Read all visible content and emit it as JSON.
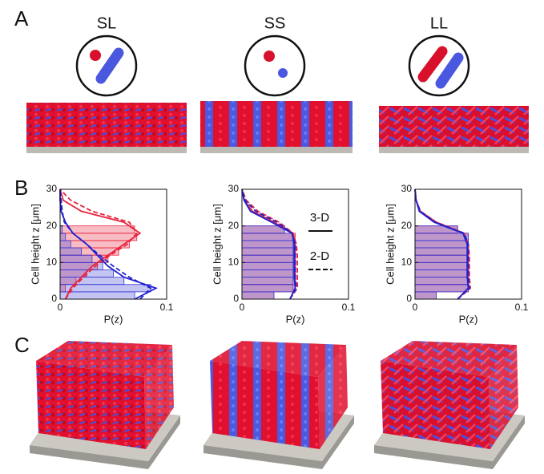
{
  "panel_labels": [
    "A",
    "B",
    "C"
  ],
  "strains": [
    "SL",
    "SS",
    "LL"
  ],
  "chart_data": [
    {
      "type": "histogram",
      "orientation": "horizontal",
      "xlabel": "P(z)",
      "ylabel": "Cell height z [μm]",
      "xlim": [
        0,
        0.1
      ],
      "xticks": [
        0,
        0.1
      ],
      "ylim": [
        0,
        30
      ],
      "yticks": [
        0,
        10,
        20,
        30
      ],
      "bins": [
        0,
        2,
        4,
        6,
        8,
        10,
        12,
        14,
        16,
        18,
        20,
        22
      ],
      "series": [
        {
          "color": "#e8233c",
          "values": [
            0,
            0.005,
            0.015,
            0.025,
            0.035,
            0.045,
            0.055,
            0.065,
            0.072,
            0.07,
            0
          ]
        },
        {
          "color": "#3a3ad8",
          "values": [
            0.07,
            0.085,
            0.06,
            0.05,
            0.04,
            0.03,
            0.02,
            0.01,
            0.005,
            0.002,
            0
          ]
        }
      ],
      "z": [
        0,
        3,
        6,
        9,
        12,
        15,
        18,
        21,
        24,
        27,
        30
      ],
      "lines": [
        {
          "color": "#e8233c",
          "style": "solid",
          "values": [
            0.005,
            0.01,
            0.02,
            0.03,
            0.045,
            0.06,
            0.075,
            0.06,
            0.02,
            0.003,
            0
          ]
        },
        {
          "color": "#e8233c",
          "style": "dashed",
          "values": [
            0.005,
            0.012,
            0.022,
            0.033,
            0.047,
            0.063,
            0.072,
            0.065,
            0.03,
            0.01,
            0
          ]
        },
        {
          "color": "#2020d0",
          "style": "solid",
          "values": [
            0.07,
            0.09,
            0.06,
            0.045,
            0.035,
            0.025,
            0.012,
            0.005,
            0.001,
            0,
            0
          ]
        },
        {
          "color": "#2020d0",
          "style": "dashed",
          "values": [
            0.075,
            0.085,
            0.065,
            0.05,
            0.037,
            0.025,
            0.012,
            0.004,
            0.002,
            0.001,
            0
          ]
        }
      ]
    },
    {
      "type": "histogram",
      "orientation": "horizontal",
      "xlabel": "P(z)",
      "ylabel": "Cell height z [μm]",
      "xlim": [
        0,
        0.1
      ],
      "xticks": [
        0,
        0.1
      ],
      "ylim": [
        0,
        30
      ],
      "yticks": [
        0,
        10,
        20,
        30
      ],
      "bins": [
        0,
        2,
        4,
        6,
        8,
        10,
        12,
        14,
        16,
        18,
        20,
        22
      ],
      "series": [
        {
          "color": "#e8233c",
          "values": [
            0.03,
            0.05,
            0.05,
            0.05,
            0.05,
            0.05,
            0.05,
            0.05,
            0.05,
            0.04,
            0
          ]
        },
        {
          "color": "#3a3ad8",
          "values": [
            0.03,
            0.048,
            0.048,
            0.048,
            0.048,
            0.048,
            0.048,
            0.048,
            0.048,
            0.04,
            0
          ]
        }
      ],
      "z": [
        0,
        3,
        6,
        9,
        12,
        15,
        18,
        21,
        24,
        27,
        30
      ],
      "lines": [
        {
          "color": "#e8233c",
          "style": "solid",
          "values": [
            0.045,
            0.05,
            0.05,
            0.05,
            0.05,
            0.05,
            0.048,
            0.03,
            0.01,
            0.002,
            0
          ]
        },
        {
          "color": "#e8233c",
          "style": "dashed",
          "values": [
            0.045,
            0.052,
            0.052,
            0.052,
            0.052,
            0.051,
            0.048,
            0.035,
            0.015,
            0.004,
            0
          ]
        },
        {
          "color": "#2020d0",
          "style": "solid",
          "values": [
            0.045,
            0.05,
            0.049,
            0.049,
            0.049,
            0.049,
            0.047,
            0.028,
            0.008,
            0.002,
            0
          ]
        },
        {
          "color": "#2020d0",
          "style": "dashed",
          "values": [
            0.045,
            0.051,
            0.05,
            0.05,
            0.05,
            0.05,
            0.047,
            0.033,
            0.013,
            0.003,
            0
          ]
        }
      ],
      "legend": [
        {
          "label": "3-D",
          "style": "solid"
        },
        {
          "label": "2-D",
          "style": "dashed"
        }
      ]
    },
    {
      "type": "histogram",
      "orientation": "horizontal",
      "xlabel": "P(z)",
      "ylabel": "Cell height z [μm]",
      "xlim": [
        0,
        0.1
      ],
      "xticks": [
        0,
        0.1
      ],
      "ylim": [
        0,
        30
      ],
      "yticks": [
        0,
        10,
        20,
        30
      ],
      "bins": [
        0,
        2,
        4,
        6,
        8,
        10,
        12,
        14,
        16,
        18,
        20,
        22
      ],
      "series": [
        {
          "color": "#e8233c",
          "values": [
            0.02,
            0.05,
            0.05,
            0.05,
            0.05,
            0.05,
            0.05,
            0.05,
            0.05,
            0.04,
            0
          ]
        },
        {
          "color": "#3a3ad8",
          "values": [
            0.02,
            0.05,
            0.05,
            0.05,
            0.05,
            0.05,
            0.05,
            0.05,
            0.05,
            0.04,
            0
          ]
        }
      ],
      "z": [
        0,
        3,
        6,
        9,
        12,
        15,
        18,
        21,
        24,
        27,
        30
      ],
      "lines": [
        {
          "color": "#e8233c",
          "style": "solid",
          "values": [
            0.04,
            0.05,
            0.05,
            0.05,
            0.05,
            0.05,
            0.046,
            0.02,
            0.005,
            0.001,
            0
          ]
        },
        {
          "color": "#e8233c",
          "style": "dashed",
          "values": [
            0.04,
            0.052,
            0.051,
            0.051,
            0.051,
            0.05,
            0.046,
            0.02,
            0.005,
            0.001,
            0
          ]
        },
        {
          "color": "#2020d0",
          "style": "solid",
          "values": [
            0.04,
            0.05,
            0.049,
            0.049,
            0.049,
            0.049,
            0.045,
            0.018,
            0.004,
            0.001,
            0
          ]
        },
        {
          "color": "#2020d0",
          "style": "dashed",
          "values": [
            0.04,
            0.051,
            0.05,
            0.05,
            0.05,
            0.05,
            0.046,
            0.019,
            0.005,
            0.001,
            0
          ]
        }
      ]
    }
  ]
}
